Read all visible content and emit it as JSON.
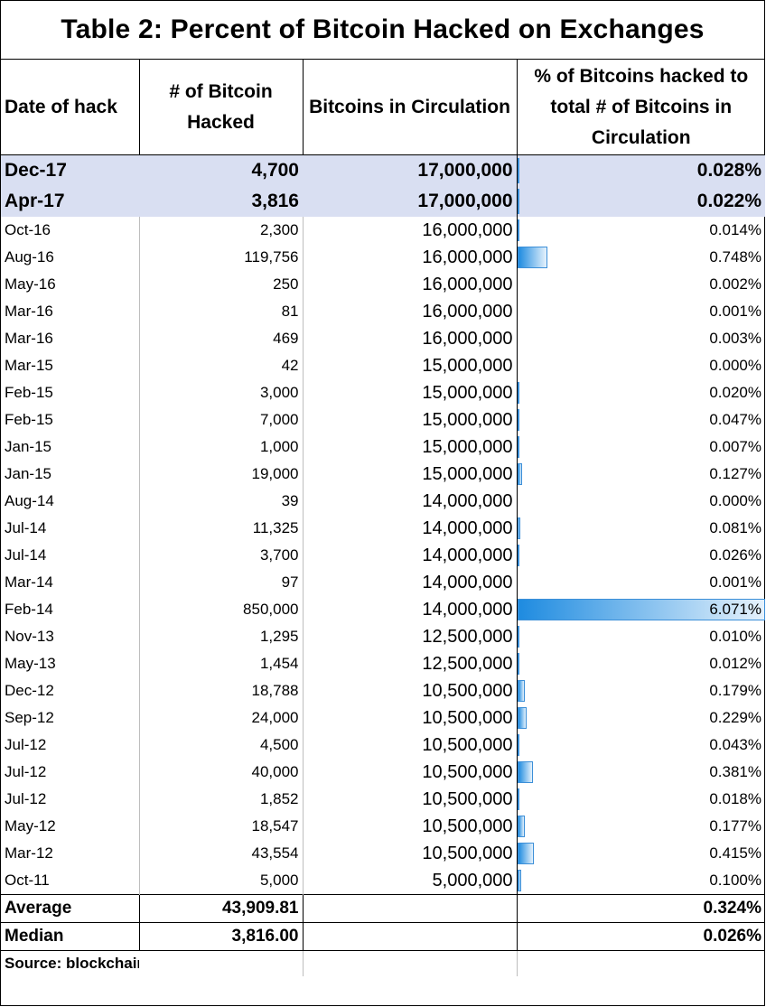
{
  "title": "Table 2: Percent of Bitcoin Hacked on Exchanges",
  "headers": {
    "date": "Date of hack",
    "hacked": "# of Bitcoin Hacked",
    "circulation": "Bitcoins in Circulation",
    "percent": "% of Bitcoins hacked to total # of Bitcoins in Circulation"
  },
  "highlighted_rows": [
    {
      "date": "Dec-17",
      "hacked": "4,700",
      "circulation": "17,000,000",
      "percent": "0.028%",
      "pct_value": 0.028
    },
    {
      "date": "Apr-17",
      "hacked": "3,816",
      "circulation": "17,000,000",
      "percent": "0.022%",
      "pct_value": 0.022
    }
  ],
  "rows": [
    {
      "date": "Oct-16",
      "hacked": "2,300",
      "circulation": "16,000,000",
      "percent": "0.014%",
      "pct_value": 0.014
    },
    {
      "date": "Aug-16",
      "hacked": "119,756",
      "circulation": "16,000,000",
      "percent": "0.748%",
      "pct_value": 0.748
    },
    {
      "date": "May-16",
      "hacked": "250",
      "circulation": "16,000,000",
      "percent": "0.002%",
      "pct_value": 0.002
    },
    {
      "date": "Mar-16",
      "hacked": "81",
      "circulation": "16,000,000",
      "percent": "0.001%",
      "pct_value": 0.001
    },
    {
      "date": "Mar-16",
      "hacked": "469",
      "circulation": "16,000,000",
      "percent": "0.003%",
      "pct_value": 0.003
    },
    {
      "date": "Mar-15",
      "hacked": "42",
      "circulation": "15,000,000",
      "percent": "0.000%",
      "pct_value": 0.0
    },
    {
      "date": "Feb-15",
      "hacked": "3,000",
      "circulation": "15,000,000",
      "percent": "0.020%",
      "pct_value": 0.02
    },
    {
      "date": "Feb-15",
      "hacked": "7,000",
      "circulation": "15,000,000",
      "percent": "0.047%",
      "pct_value": 0.047
    },
    {
      "date": "Jan-15",
      "hacked": "1,000",
      "circulation": "15,000,000",
      "percent": "0.007%",
      "pct_value": 0.007
    },
    {
      "date": "Jan-15",
      "hacked": "19,000",
      "circulation": "15,000,000",
      "percent": "0.127%",
      "pct_value": 0.127
    },
    {
      "date": "Aug-14",
      "hacked": "39",
      "circulation": "14,000,000",
      "percent": "0.000%",
      "pct_value": 0.0
    },
    {
      "date": "Jul-14",
      "hacked": "11,325",
      "circulation": "14,000,000",
      "percent": "0.081%",
      "pct_value": 0.081
    },
    {
      "date": "Jul-14",
      "hacked": "3,700",
      "circulation": "14,000,000",
      "percent": "0.026%",
      "pct_value": 0.026
    },
    {
      "date": "Mar-14",
      "hacked": "97",
      "circulation": "14,000,000",
      "percent": "0.001%",
      "pct_value": 0.001
    },
    {
      "date": "Feb-14",
      "hacked": "850,000",
      "circulation": "14,000,000",
      "percent": "6.071%",
      "pct_value": 6.071
    },
    {
      "date": "Nov-13",
      "hacked": "1,295",
      "circulation": "12,500,000",
      "percent": "0.010%",
      "pct_value": 0.01
    },
    {
      "date": "May-13",
      "hacked": "1,454",
      "circulation": "12,500,000",
      "percent": "0.012%",
      "pct_value": 0.012
    },
    {
      "date": "Dec-12",
      "hacked": "18,788",
      "circulation": "10,500,000",
      "percent": "0.179%",
      "pct_value": 0.179
    },
    {
      "date": "Sep-12",
      "hacked": "24,000",
      "circulation": "10,500,000",
      "percent": "0.229%",
      "pct_value": 0.229
    },
    {
      "date": "Jul-12",
      "hacked": "4,500",
      "circulation": "10,500,000",
      "percent": "0.043%",
      "pct_value": 0.043
    },
    {
      "date": "Jul-12",
      "hacked": "40,000",
      "circulation": "10,500,000",
      "percent": "0.381%",
      "pct_value": 0.381
    },
    {
      "date": "Jul-12",
      "hacked": "1,852",
      "circulation": "10,500,000",
      "percent": "0.018%",
      "pct_value": 0.018
    },
    {
      "date": "May-12",
      "hacked": "18,547",
      "circulation": "10,500,000",
      "percent": "0.177%",
      "pct_value": 0.177
    },
    {
      "date": "Mar-12",
      "hacked": "43,554",
      "circulation": "10,500,000",
      "percent": "0.415%",
      "pct_value": 0.415
    },
    {
      "date": "Oct-11",
      "hacked": "5,000",
      "circulation": "5,000,000",
      "percent": "0.100%",
      "pct_value": 0.1
    }
  ],
  "summary": [
    {
      "label": "Average",
      "hacked": "43,909.81",
      "percent": "0.324%"
    },
    {
      "label": "Median",
      "hacked": "3,816.00",
      "percent": "0.026%"
    }
  ],
  "source": "Source: blockchain.info",
  "bar_max_value": 6.071,
  "colors": {
    "highlight_row": "#d9dff2",
    "bar_start": "#1e8be0",
    "bar_end": "#e6f2fc",
    "bar_border": "#3c8fd8"
  }
}
